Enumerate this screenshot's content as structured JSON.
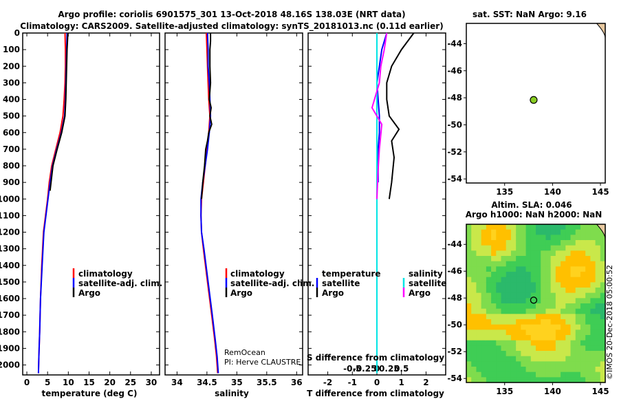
{
  "title": {
    "line1": "Argo profile: coriolis 6901575_301 13-Oct-2018 48.16S 138.03E (NRT data)",
    "line2": "Climatology: CARS2009. Satellite-adjusted climatology: synTS_20181013.nc (0.11d earlier)"
  },
  "colors": {
    "climatology": "#ff0000",
    "satellite": "#0000ff",
    "argo": "#000000",
    "sal_satellite": "#00e5e5",
    "sal_argo": "#ff00ff"
  },
  "chart_data": [
    {
      "type": "line",
      "name": "temperature",
      "xlabel": "temperature (deg C)",
      "xlim": [
        -1,
        32
      ],
      "ylim": [
        2060,
        0
      ],
      "xticks": [
        0,
        5,
        10,
        15,
        20,
        25,
        30
      ],
      "series": [
        {
          "name": "climatology",
          "x": [
            9.2,
            9.3,
            9.3,
            9.2,
            9.0,
            8.7,
            8.0,
            7.0,
            6.0,
            5.4,
            5.0,
            4.5,
            4.0,
            3.6,
            3.3,
            3.1,
            2.9,
            2.8
          ],
          "y": [
            0,
            100,
            200,
            300,
            400,
            500,
            600,
            700,
            800,
            900,
            1000,
            1100,
            1200,
            1400,
            1600,
            1800,
            1950,
            2050
          ]
        },
        {
          "name": "satellite",
          "x": [
            9.7,
            9.6,
            9.5,
            9.4,
            9.3,
            9.1,
            8.3,
            7.2,
            6.2,
            5.6,
            5.1,
            4.6,
            4.1,
            3.7,
            3.3,
            3.1,
            2.9,
            2.8
          ],
          "y": [
            0,
            100,
            200,
            300,
            400,
            500,
            600,
            700,
            800,
            900,
            1000,
            1100,
            1200,
            1400,
            1600,
            1800,
            1950,
            2050
          ]
        },
        {
          "name": "argo",
          "x": [
            9.9,
            9.7,
            9.6,
            9.5,
            9.4,
            9.2,
            8.4,
            7.3,
            6.3,
            5.6
          ],
          "y": [
            0,
            100,
            200,
            300,
            400,
            500,
            600,
            700,
            800,
            950
          ]
        }
      ],
      "legend": [
        "climatology",
        "satellite-adj. clim.",
        "Argo"
      ]
    },
    {
      "type": "line",
      "name": "salinity",
      "xlabel": "salinity",
      "xlim": [
        33.8,
        36.1
      ],
      "ylim": [
        2060,
        0
      ],
      "xticks": [
        34,
        34.5,
        35,
        35.5,
        36
      ],
      "xticklabels": [
        "34",
        "34.5",
        "35",
        "35.5",
        "36"
      ],
      "series": [
        {
          "name": "climatology",
          "x": [
            34.49,
            34.5,
            34.51,
            34.52,
            34.53,
            34.55,
            34.53,
            34.5,
            34.47,
            34.44,
            34.41,
            34.4,
            34.41,
            34.44,
            34.51,
            34.58,
            34.63,
            34.66,
            34.68
          ],
          "y": [
            0,
            100,
            200,
            300,
            400,
            500,
            600,
            700,
            800,
            900,
            1000,
            1100,
            1200,
            1300,
            1500,
            1700,
            1850,
            1950,
            2050
          ]
        },
        {
          "name": "satellite",
          "x": [
            34.51,
            34.52,
            34.52,
            34.54,
            34.55,
            34.56,
            34.54,
            34.51,
            34.47,
            34.43,
            34.4,
            34.4,
            34.41,
            34.45,
            34.52,
            34.59,
            34.64,
            34.67,
            34.69
          ],
          "y": [
            0,
            100,
            200,
            300,
            400,
            500,
            600,
            700,
            800,
            900,
            1000,
            1100,
            1200,
            1300,
            1500,
            1700,
            1850,
            1950,
            2050
          ]
        },
        {
          "name": "argo",
          "x": [
            34.56,
            34.56,
            34.55,
            34.55,
            34.56,
            34.54,
            34.57,
            34.55,
            34.58,
            34.53,
            34.51,
            34.48,
            34.46,
            34.43,
            34.41
          ],
          "y": [
            0,
            50,
            100,
            200,
            300,
            400,
            450,
            500,
            550,
            600,
            650,
            700,
            800,
            900,
            1000
          ]
        }
      ],
      "legend": [
        "climatology",
        "satellite-adj. clim.",
        "Argo"
      ],
      "annotation": [
        "RemOcean",
        "PI: Herve CLAUSTRE"
      ]
    },
    {
      "type": "line",
      "name": "difference",
      "xlabel": "T difference from climatology",
      "xlabel2": "S difference from climatology",
      "xlim": [
        -2.8,
        2.8
      ],
      "ylim": [
        2060,
        0
      ],
      "xticks": [
        -2,
        -1,
        0,
        1,
        2
      ],
      "xticks2": [
        -0.5,
        -0.25,
        0,
        0.25,
        0.5
      ],
      "xticklabels2": [
        "-0.5",
        "-0.25",
        "0",
        "0.25",
        "0.5"
      ],
      "series": [
        {
          "name": "T satellite",
          "x": [
            0.4,
            0.2,
            0.1,
            0.0,
            0.05,
            0.1,
            0.1,
            0.05,
            0.05,
            0.05
          ],
          "y": [
            0,
            100,
            200,
            300,
            400,
            500,
            600,
            700,
            800,
            900
          ]
        },
        {
          "name": "T Argo",
          "x": [
            1.5,
            1.0,
            0.6,
            0.4,
            0.4,
            0.5,
            0.9,
            0.6,
            0.7,
            0.6,
            0.5
          ],
          "y": [
            0,
            100,
            200,
            300,
            400,
            500,
            580,
            650,
            750,
            900,
            1000
          ]
        },
        {
          "name": "S satellite",
          "x": [
            0.0,
            0.0,
            0.0,
            0.0,
            0.0,
            0.0,
            0.0,
            0.0,
            0.0,
            0.0
          ],
          "y": [
            0,
            200,
            400,
            600,
            800,
            1000,
            1200,
            1500,
            1800,
            2050
          ]
        },
        {
          "name": "S Argo",
          "x": [
            0.2,
            0.15,
            0.08,
            0.05,
            -0.1,
            0.1,
            0.05,
            0.02,
            0.0
          ],
          "y": [
            0,
            100,
            200,
            300,
            450,
            550,
            700,
            850,
            1000
          ]
        }
      ],
      "legend_headers": [
        "temperature",
        "salinity"
      ],
      "legend": [
        "satellite",
        "Argo",
        "satellite",
        "Argo"
      ]
    },
    {
      "type": "scatter",
      "name": "sst_map",
      "title": "sat. SST: NaN Argo: 9.16",
      "xlim": [
        131,
        145.5
      ],
      "ylim": [
        -54.3,
        -42.5
      ],
      "xticks": [
        135,
        140,
        145
      ],
      "yticks": [
        -44,
        -46,
        -48,
        -50,
        -52,
        -54
      ],
      "point": {
        "x": 138.03,
        "y": -48.16
      }
    },
    {
      "type": "heatmap",
      "name": "sla_map",
      "title": "Altim. SLA: 0.046",
      "subtitle": "Argo h1000: NaN h2000: NaN",
      "xlim": [
        131,
        145.5
      ],
      "ylim": [
        -54.3,
        -42.5
      ],
      "xticks": [
        135,
        140,
        145
      ],
      "yticks": [
        -44,
        -46,
        -48,
        -50,
        -52,
        -54
      ],
      "point": {
        "x": 138.03,
        "y": -48.16
      }
    }
  ],
  "y_axis": {
    "ticks": [
      0,
      100,
      200,
      300,
      400,
      500,
      600,
      700,
      800,
      900,
      1000,
      1100,
      1200,
      1300,
      1400,
      1500,
      1600,
      1700,
      1800,
      1900,
      2000
    ]
  },
  "watermark": "©IMOS 20-Dec-2018 05:00:52"
}
